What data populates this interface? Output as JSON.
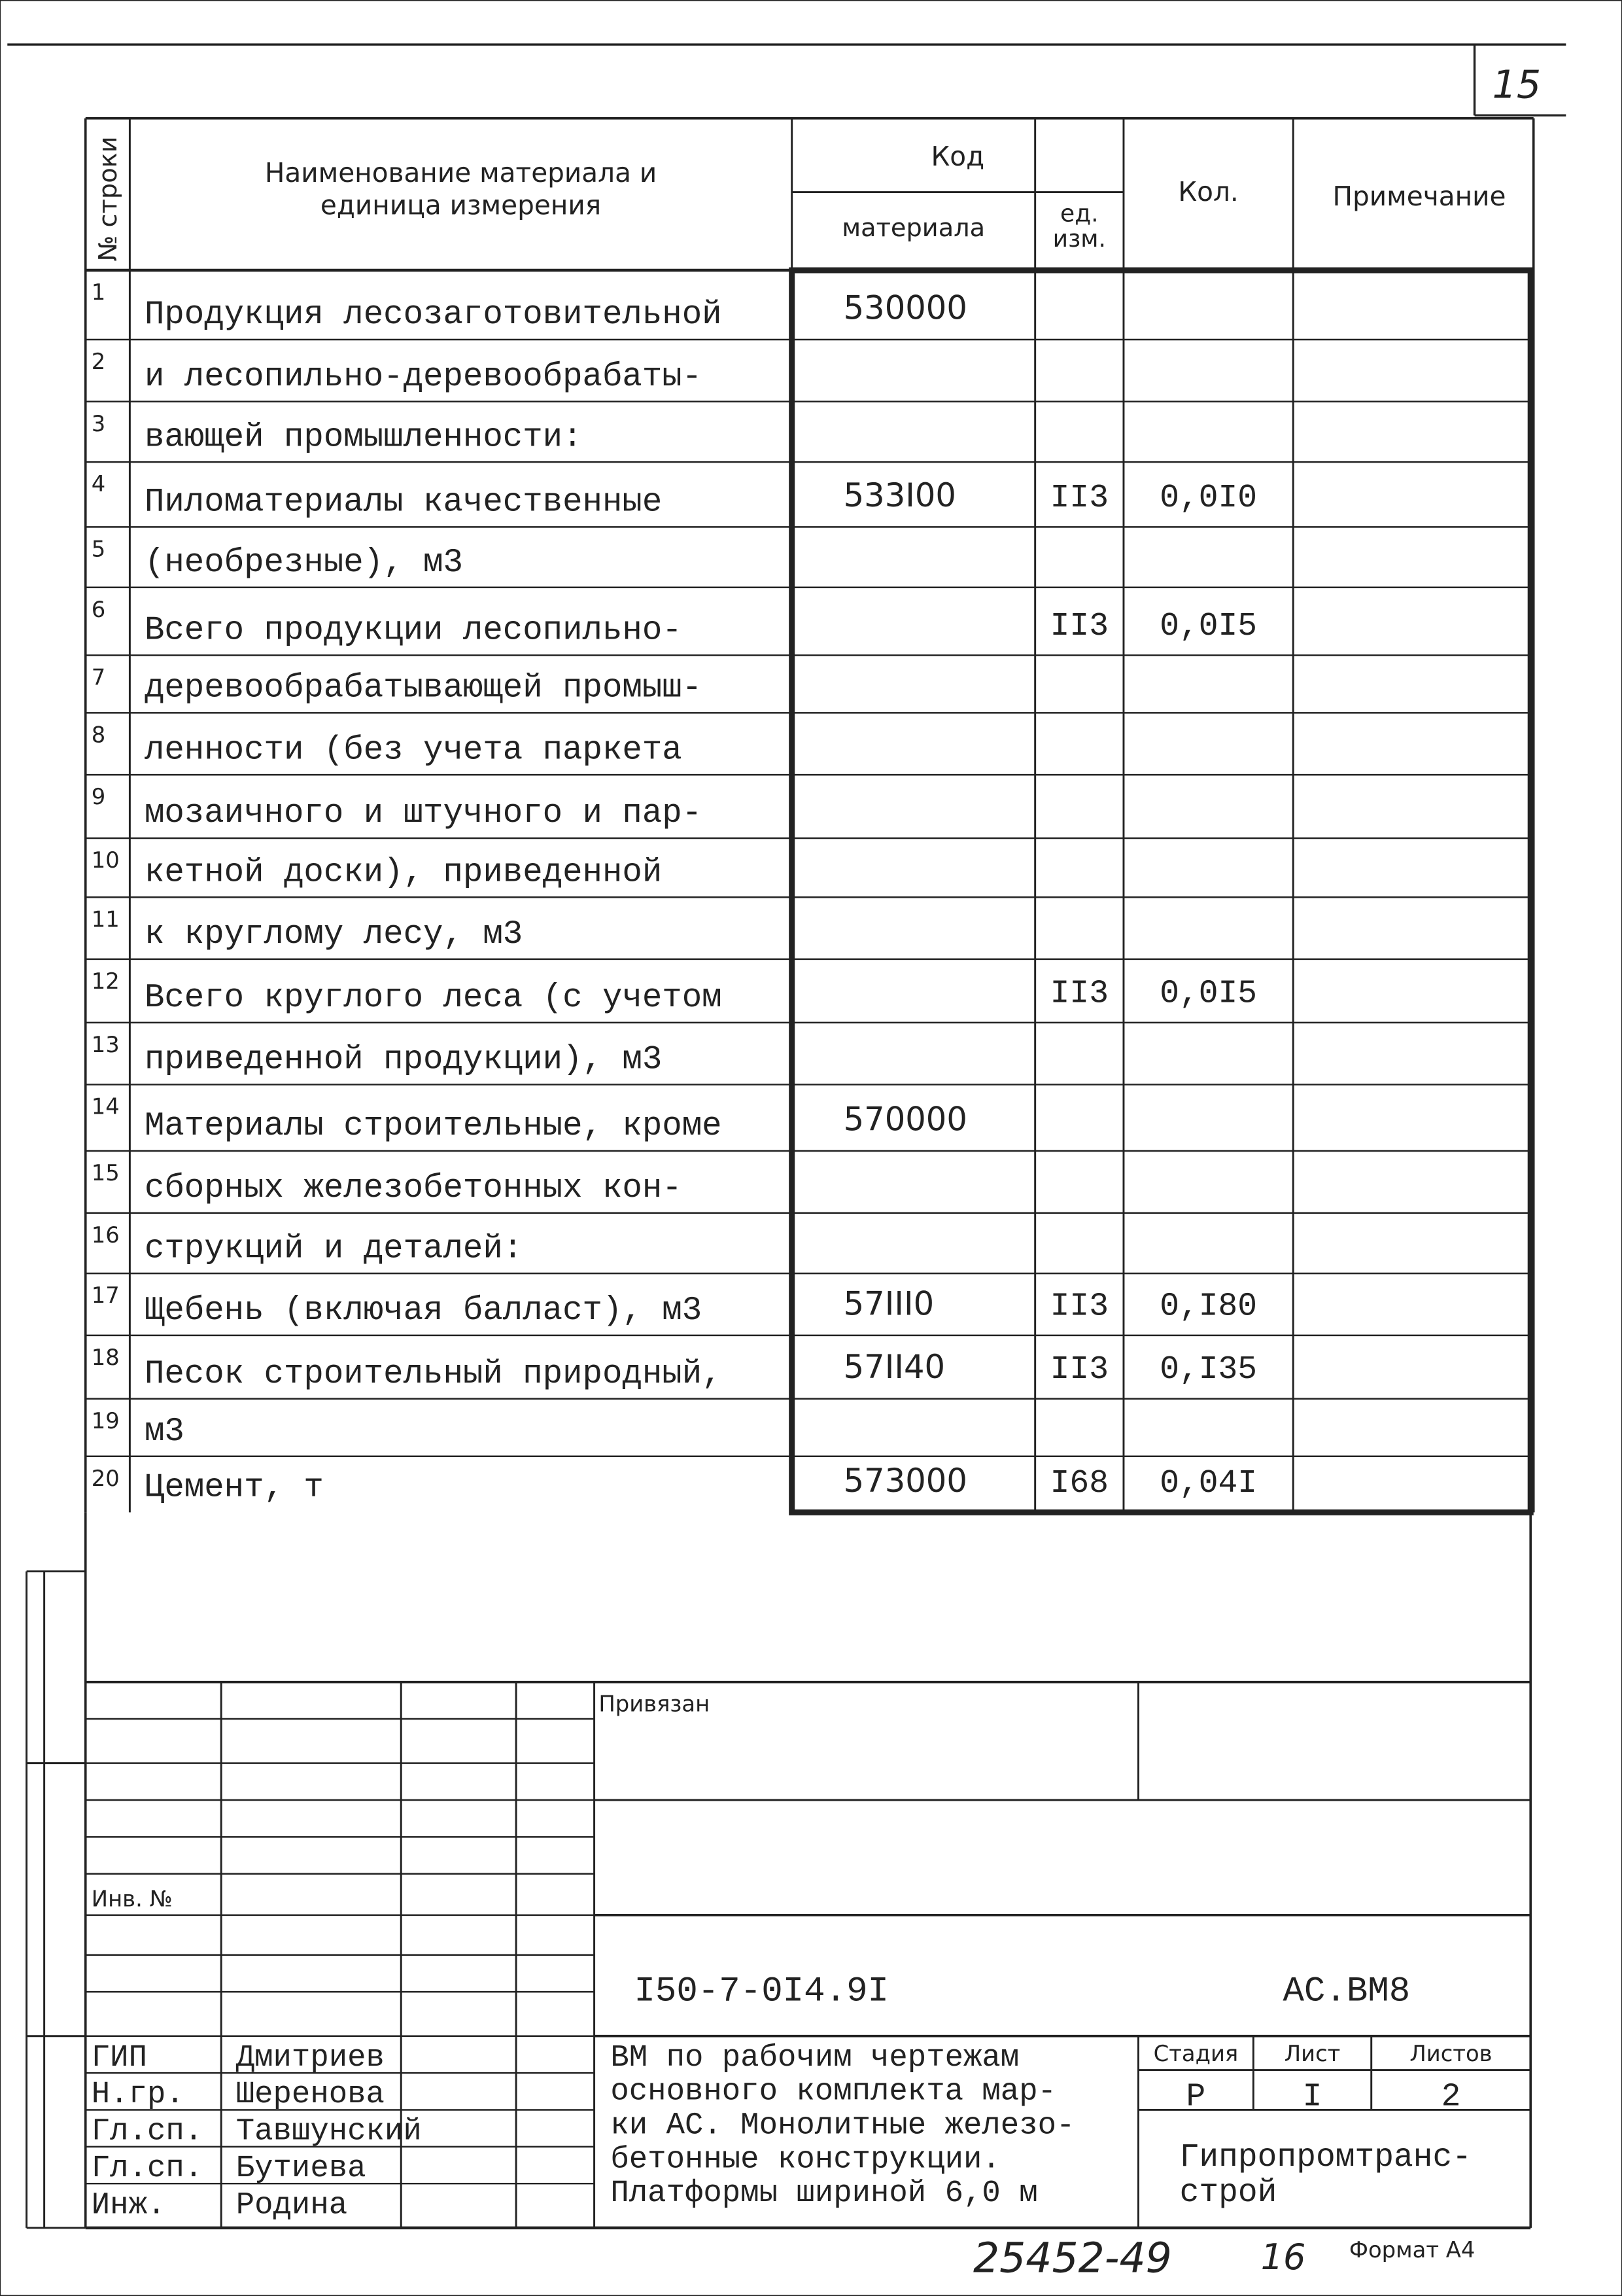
{
  "page_number": "15",
  "table": {
    "header": {
      "row_no": "№ строки",
      "name": "Наименование материала и единица измерения",
      "code": "Код",
      "code_material": "материала",
      "code_unit": "ед. изм.",
      "qty": "Кол.",
      "note": "Примечание"
    },
    "rows": [
      [
        "1",
        "Продукция лесозаготовительной",
        "530000",
        null,
        null,
        null
      ],
      [
        "2",
        "и лесопильно-деревообрабаты-",
        null,
        null,
        null,
        null
      ],
      [
        "3",
        "вающей промышленности:",
        null,
        null,
        null,
        null
      ],
      [
        "4",
        "Пиломатериалы качественные",
        "533I00",
        "II3",
        "0,0I0",
        null
      ],
      [
        "5",
        "(необрезные), м3",
        null,
        null,
        null,
        null
      ],
      [
        "6",
        "Всего продукции лесопильно-",
        null,
        "II3",
        "0,0I5",
        null
      ],
      [
        "7",
        "деревообрабатывающей промыш-",
        null,
        null,
        null,
        null
      ],
      [
        "8",
        "ленности (без учета паркета",
        null,
        null,
        null,
        null
      ],
      [
        "9",
        "мозаичного и штучного и пар-",
        null,
        null,
        null,
        null
      ],
      [
        "10",
        "кетной доски), приведенной",
        null,
        null,
        null,
        null
      ],
      [
        "11",
        "к круглому лесу, м3",
        null,
        null,
        null,
        null
      ],
      [
        "12",
        "Всего круглого леса (с учетом",
        null,
        "II3",
        "0,0I5",
        null
      ],
      [
        "13",
        "приведенной продукции), м3",
        null,
        null,
        null,
        null
      ],
      [
        "14",
        "Материалы строительные, кроме",
        "570000",
        null,
        null,
        null
      ],
      [
        "15",
        "сборных железобетонных кон-",
        null,
        null,
        null,
        null
      ],
      [
        "16",
        "струкций и деталей:",
        null,
        null,
        null,
        null
      ],
      [
        "17",
        "Щебень (включая балласт), м3",
        "57III0",
        "II3",
        "0,I80",
        null
      ],
      [
        "18",
        "Песок строительный природный,",
        "57II40",
        "II3",
        "0,I35",
        null
      ],
      [
        "19",
        "м3",
        null,
        null,
        null,
        null
      ],
      [
        "20",
        "Цемент, т",
        "573000",
        "I68",
        "0,04I",
        null
      ]
    ]
  },
  "stamp": {
    "attached": "Привязан",
    "inv_no": "Инв. №",
    "doc_code": "I50-7-0I4.9I",
    "mark": "АС.ВМ8",
    "signatures": [
      [
        "ГИП",
        "Дмитриев"
      ],
      [
        "Н.гр.",
        "Шеренова"
      ],
      [
        "Гл.сп.",
        "Тавшунский"
      ],
      [
        "Гл.сп.",
        "Бутиева"
      ],
      [
        "Инж.",
        "Родина"
      ]
    ],
    "description": [
      "ВМ по рабочим чертежам",
      "основного комплекта мар-",
      "ки АС. Монолитные железо-",
      "бетонные конструкции.",
      "Платформы шириной 6,0 м"
    ],
    "stage_header": [
      "Стадия",
      "Лист",
      "Листов"
    ],
    "stage_values": [
      "Р",
      "I",
      "2"
    ],
    "organization": [
      "Гипропромтранс-",
      "строй"
    ]
  },
  "footer": {
    "archive_no": "25452-49",
    "sheet": "16",
    "format": "Формат А4"
  }
}
